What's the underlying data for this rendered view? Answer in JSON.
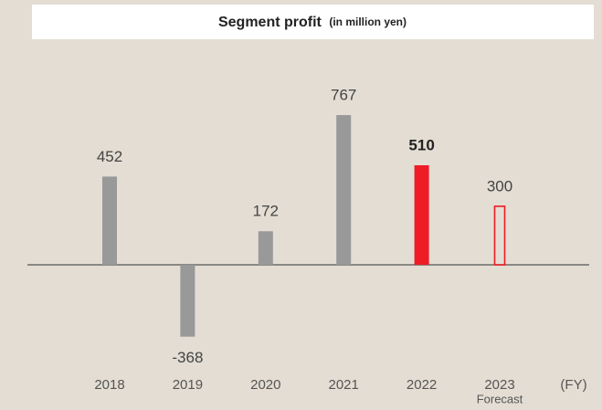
{
  "chart_data": {
    "type": "bar",
    "title": "Segment profit",
    "subtitle": "(in million yen)",
    "categories": [
      "2018",
      "2019",
      "2020",
      "2021",
      "2022",
      "2023"
    ],
    "values": [
      452,
      -368,
      172,
      767,
      510,
      300
    ],
    "colors": [
      "#999999",
      "#999999",
      "#999999",
      "#999999",
      "#ee1c25",
      "#ee1c25"
    ],
    "styles": [
      "fill",
      "fill",
      "fill",
      "fill",
      "fill",
      "outline"
    ],
    "bold_labels": [
      false,
      false,
      false,
      false,
      true,
      false
    ],
    "forecast_label": "Forecast",
    "x_unit": "(FY)",
    "ylim": [
      -600,
      900
    ]
  }
}
